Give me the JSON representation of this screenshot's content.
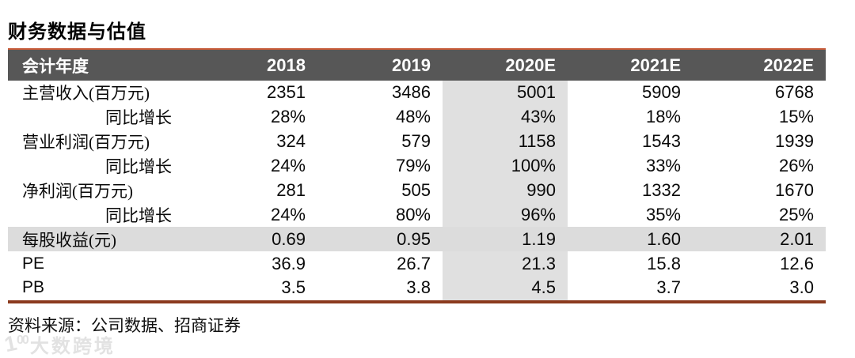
{
  "title": "财务数据与估值",
  "table": {
    "header": [
      "会计年度",
      "2018",
      "2019",
      "2020E",
      "2021E",
      "2022E"
    ],
    "highlight_value_index": 2,
    "highlight_column_label": "2020E",
    "rows": [
      {
        "label": "主营收入(百万元)",
        "indent": false,
        "highlight": false,
        "values": [
          "2351",
          "3486",
          "5001",
          "5909",
          "6768"
        ]
      },
      {
        "label": "同比增长",
        "indent": true,
        "highlight": false,
        "values": [
          "28%",
          "48%",
          "43%",
          "18%",
          "15%"
        ]
      },
      {
        "label": "营业利润(百万元)",
        "indent": false,
        "highlight": false,
        "values": [
          "324",
          "579",
          "1158",
          "1543",
          "1939"
        ]
      },
      {
        "label": "同比增长",
        "indent": true,
        "highlight": false,
        "values": [
          "24%",
          "79%",
          "100%",
          "33%",
          "26%"
        ]
      },
      {
        "label": "净利润(百万元)",
        "indent": false,
        "highlight": false,
        "values": [
          "281",
          "505",
          "990",
          "1332",
          "1670"
        ]
      },
      {
        "label": "同比增长",
        "indent": true,
        "highlight": false,
        "values": [
          "24%",
          "80%",
          "96%",
          "35%",
          "25%"
        ]
      },
      {
        "label": "每股收益(元)",
        "indent": false,
        "highlight": true,
        "values": [
          "0.69",
          "0.95",
          "1.19",
          "1.60",
          "2.01"
        ]
      },
      {
        "label": "PE",
        "indent": false,
        "highlight": false,
        "values": [
          "36.9",
          "26.7",
          "21.3",
          "15.8",
          "12.6"
        ]
      },
      {
        "label": "PB",
        "indent": false,
        "highlight": false,
        "values": [
          "3.5",
          "3.8",
          "4.5",
          "3.7",
          "3.0"
        ]
      }
    ]
  },
  "footer": {
    "source": "资料来源：公司数据、招商证券"
  },
  "watermark": {
    "logo_digit": "1",
    "logo_zeros": "00",
    "text": "大数跨境"
  },
  "colors": {
    "header_bg": "#575757",
    "header_text": "#ffffff",
    "top_line": "#c75b39",
    "bottom_line": "#8b3a1e",
    "column_highlight": "#e0e0e0",
    "row_highlight": "#dcdcdc"
  }
}
